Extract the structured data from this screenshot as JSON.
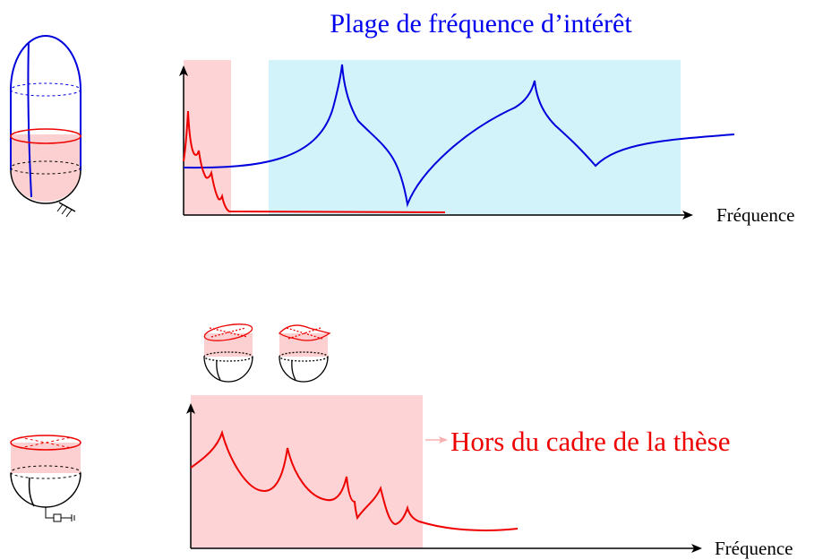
{
  "top": {
    "title": "Plage de fréquence d’intérêt",
    "axis_label": "Fréquence"
  },
  "bottom": {
    "annotation": "Hors du cadre de la thèse",
    "axis_label": "Fréquence"
  }
}
